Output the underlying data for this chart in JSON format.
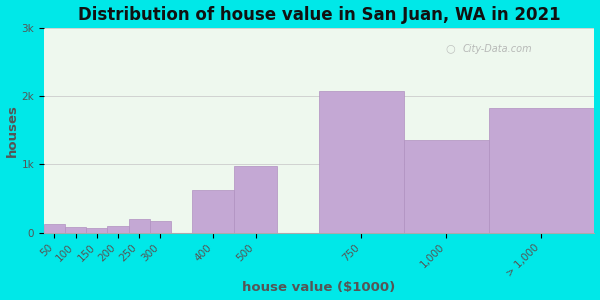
{
  "title": "Distribution of house value in San Juan, WA in 2021",
  "xlabel": "house value ($1000)",
  "ylabel": "houses",
  "categories": [
    "50",
    "100",
    "150",
    "200",
    "250",
    "300",
    "400",
    "500",
    "750",
    "1,000",
    "> 1,000"
  ],
  "values": [
    120,
    75,
    65,
    90,
    195,
    175,
    620,
    980,
    2080,
    1350,
    1820
  ],
  "bar_color": "#c4a8d4",
  "bar_edgecolor": "#b090c0",
  "background_outer": "#00e8e8",
  "background_inner": "#eef8ee",
  "grid_color": "#cccccc",
  "title_fontsize": 12,
  "label_fontsize": 9.5,
  "tick_fontsize": 7.5,
  "yticks": [
    0,
    1000,
    2000,
    3000
  ],
  "ytick_labels": [
    "0",
    "1k",
    "2k",
    "3k"
  ],
  "ylim": [
    0,
    3000
  ],
  "watermark_text": "City-Data.com",
  "bar_positions": [
    0,
    1,
    2,
    3,
    4,
    5,
    7,
    9,
    13,
    17,
    21
  ],
  "bar_widths": [
    1,
    1,
    1,
    1,
    1,
    1,
    2,
    2,
    4,
    4,
    5
  ]
}
